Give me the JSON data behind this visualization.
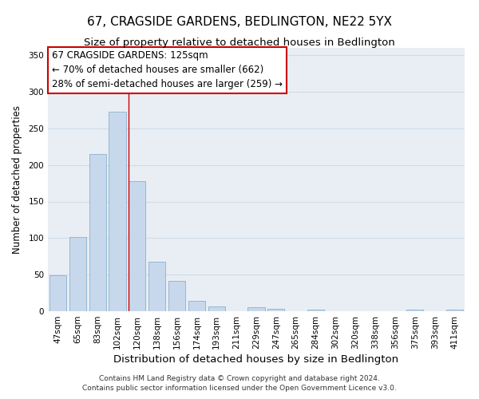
{
  "title": "67, CRAGSIDE GARDENS, BEDLINGTON, NE22 5YX",
  "subtitle": "Size of property relative to detached houses in Bedlington",
  "xlabel": "Distribution of detached houses by size in Bedlington",
  "ylabel": "Number of detached properties",
  "footer_line1": "Contains HM Land Registry data © Crown copyright and database right 2024.",
  "footer_line2": "Contains public sector information licensed under the Open Government Licence v3.0.",
  "categories": [
    "47sqm",
    "65sqm",
    "83sqm",
    "102sqm",
    "120sqm",
    "138sqm",
    "156sqm",
    "174sqm",
    "193sqm",
    "211sqm",
    "229sqm",
    "247sqm",
    "265sqm",
    "284sqm",
    "302sqm",
    "320sqm",
    "338sqm",
    "356sqm",
    "375sqm",
    "393sqm",
    "411sqm"
  ],
  "values": [
    49,
    101,
    215,
    273,
    178,
    68,
    41,
    14,
    7,
    0,
    5,
    3,
    0,
    2,
    0,
    0,
    0,
    0,
    2,
    0,
    2
  ],
  "bar_color_normal": "#c8d8ec",
  "bar_edge_color": "#8ab0cc",
  "vline_x_index": 4,
  "vline_color": "#cc0000",
  "annotation_line1": "67 CRAGSIDE GARDENS: 125sqm",
  "annotation_line2": "← 70% of detached houses are smaller (662)",
  "annotation_line3": "28% of semi-detached houses are larger (259) →",
  "box_edge_color": "#cc0000",
  "ylim": [
    0,
    360
  ],
  "yticks": [
    0,
    50,
    100,
    150,
    200,
    250,
    300,
    350
  ],
  "title_fontsize": 11,
  "subtitle_fontsize": 9.5,
  "xlabel_fontsize": 9.5,
  "ylabel_fontsize": 8.5,
  "tick_fontsize": 7.5,
  "annotation_fontsize": 8.5,
  "footer_fontsize": 6.5,
  "bg_color": "#ffffff",
  "grid_color": "#d0dce8",
  "plot_bg_color": "#e8eef4"
}
